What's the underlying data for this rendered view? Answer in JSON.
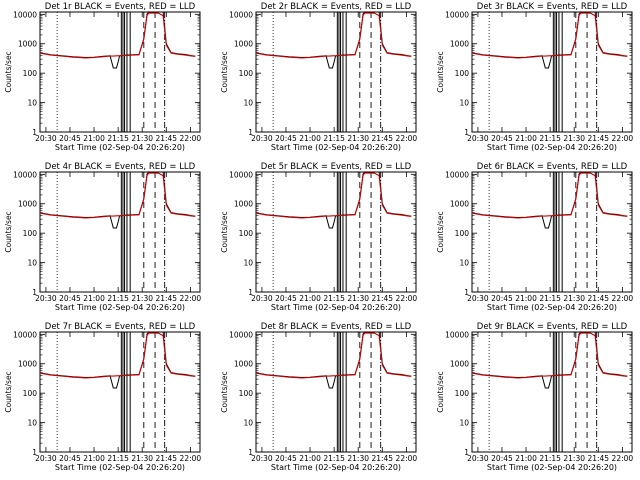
{
  "colors": {
    "events": "#000000",
    "lld": "#cc0000",
    "background": "#ffffff"
  },
  "chart_data": [
    {
      "type": "line",
      "title": "Det 1r BLACK = Events, RED = LLD",
      "xlabel": "Start Time (02-Sep-04 20:26:20)",
      "ylabel": "Counts/sec",
      "x_ticks": [
        "20:30",
        "20:45",
        "21:00",
        "21:15",
        "21:30",
        "21:45",
        "22:00"
      ],
      "y_ticks": [
        "1",
        "10",
        "100",
        "1000",
        "10000"
      ],
      "yscale": "log",
      "ylim": [
        1,
        12000
      ],
      "x": [
        "20:26",
        "20:33",
        "20:40",
        "20:47",
        "20:55",
        "21:00",
        "21:05",
        "21:10",
        "21:12",
        "21:14",
        "21:16",
        "21:18",
        "21:20",
        "21:24",
        "21:28",
        "21:31",
        "21:33",
        "21:34",
        "21:36",
        "21:40",
        "21:43",
        "21:45",
        "21:48",
        "21:52",
        "21:57",
        "22:00",
        "22:03"
      ],
      "series": [
        {
          "name": "Events",
          "values": [
            500,
            420,
            390,
            360,
            340,
            350,
            370,
            390,
            150,
            150,
            390,
            400,
            410,
            420,
            430,
            1500,
            10000,
            12000,
            12000,
            12000,
            12000,
            1000,
            500,
            460,
            430,
            400,
            380
          ]
        },
        {
          "name": "LLD",
          "values": [
            480,
            410,
            380,
            350,
            330,
            340,
            360,
            380,
            380,
            390,
            390,
            400,
            400,
            410,
            420,
            1400,
            9000,
            11000,
            11000,
            11000,
            9000,
            900,
            480,
            440,
            410,
            390,
            370
          ]
        }
      ]
    },
    {
      "type": "line",
      "title": "Det 2r BLACK = Events, RED = LLD",
      "xlabel": "Start Time (02-Sep-04 20:26:20)",
      "ylabel": "Counts/sec",
      "x_ticks": [
        "20:30",
        "20:45",
        "21:00",
        "21:15",
        "21:30",
        "21:45",
        "22:00"
      ],
      "y_ticks": [
        "1",
        "10",
        "100",
        "1000",
        "10000"
      ],
      "yscale": "log",
      "ylim": [
        1,
        12000
      ],
      "x": [
        "20:26",
        "20:33",
        "20:40",
        "20:47",
        "20:55",
        "21:00",
        "21:05",
        "21:10",
        "21:12",
        "21:14",
        "21:16",
        "21:18",
        "21:20",
        "21:24",
        "21:28",
        "21:31",
        "21:33",
        "21:34",
        "21:36",
        "21:40",
        "21:43",
        "21:45",
        "21:48",
        "21:52",
        "21:57",
        "22:00",
        "22:03"
      ],
      "series": [
        {
          "name": "Events",
          "values": [
            500,
            420,
            390,
            360,
            340,
            350,
            370,
            390,
            150,
            150,
            390,
            400,
            410,
            420,
            430,
            1500,
            10000,
            12000,
            12000,
            12000,
            12000,
            1000,
            500,
            460,
            430,
            400,
            380
          ]
        },
        {
          "name": "LLD",
          "values": [
            480,
            410,
            380,
            350,
            330,
            340,
            360,
            380,
            380,
            390,
            390,
            400,
            400,
            410,
            420,
            1400,
            9000,
            11000,
            11000,
            11000,
            9000,
            900,
            480,
            440,
            410,
            390,
            370
          ]
        }
      ]
    },
    {
      "type": "line",
      "title": "Det 3r BLACK = Events, RED = LLD",
      "xlabel": "Start Time (02-Sep-04 20:26:20)",
      "ylabel": "Counts/sec",
      "x_ticks": [
        "20:30",
        "20:45",
        "21:00",
        "21:15",
        "21:30",
        "21:45",
        "22:00"
      ],
      "y_ticks": [
        "1",
        "10",
        "100",
        "1000",
        "10000"
      ],
      "yscale": "log",
      "ylim": [
        1,
        12000
      ],
      "x": [
        "20:26",
        "20:33",
        "20:40",
        "20:47",
        "20:55",
        "21:00",
        "21:05",
        "21:10",
        "21:12",
        "21:14",
        "21:16",
        "21:18",
        "21:20",
        "21:24",
        "21:28",
        "21:31",
        "21:33",
        "21:34",
        "21:36",
        "21:40",
        "21:43",
        "21:45",
        "21:48",
        "21:52",
        "21:57",
        "22:00",
        "22:03"
      ],
      "series": [
        {
          "name": "Events",
          "values": [
            500,
            420,
            390,
            360,
            340,
            350,
            370,
            390,
            150,
            150,
            390,
            400,
            410,
            420,
            430,
            1500,
            10000,
            12000,
            12000,
            12000,
            12000,
            1000,
            500,
            460,
            430,
            400,
            380
          ]
        },
        {
          "name": "LLD",
          "values": [
            480,
            410,
            380,
            350,
            330,
            340,
            360,
            380,
            380,
            390,
            390,
            400,
            400,
            410,
            420,
            1400,
            9000,
            11000,
            11000,
            11000,
            9000,
            900,
            480,
            440,
            410,
            390,
            370
          ]
        }
      ]
    },
    {
      "type": "line",
      "title": "Det 4r BLACK = Events, RED = LLD",
      "xlabel": "Start Time (02-Sep-04 20:26:20)",
      "ylabel": "Counts/sec",
      "x_ticks": [
        "20:30",
        "20:45",
        "21:00",
        "21:15",
        "21:30",
        "21:45",
        "22:00"
      ],
      "y_ticks": [
        "1",
        "10",
        "100",
        "1000",
        "10000"
      ],
      "yscale": "log",
      "ylim": [
        1,
        12000
      ],
      "x": [
        "20:26",
        "20:33",
        "20:40",
        "20:47",
        "20:55",
        "21:00",
        "21:05",
        "21:10",
        "21:12",
        "21:14",
        "21:16",
        "21:18",
        "21:20",
        "21:24",
        "21:28",
        "21:31",
        "21:33",
        "21:34",
        "21:36",
        "21:40",
        "21:43",
        "21:45",
        "21:48",
        "21:52",
        "21:57",
        "22:00",
        "22:03"
      ],
      "series": [
        {
          "name": "Events",
          "values": [
            500,
            420,
            390,
            360,
            340,
            350,
            370,
            390,
            150,
            150,
            390,
            400,
            410,
            420,
            430,
            1500,
            10000,
            12000,
            12000,
            12000,
            12000,
            1000,
            500,
            460,
            430,
            400,
            380
          ]
        },
        {
          "name": "LLD",
          "values": [
            480,
            410,
            380,
            350,
            330,
            340,
            360,
            380,
            380,
            390,
            390,
            400,
            400,
            410,
            420,
            1400,
            9000,
            11000,
            11000,
            11000,
            9000,
            900,
            480,
            440,
            410,
            390,
            370
          ]
        }
      ]
    },
    {
      "type": "line",
      "title": "Det 5r BLACK = Events, RED = LLD",
      "xlabel": "Start Time (02-Sep-04 20:26:20)",
      "ylabel": "Counts/sec",
      "x_ticks": [
        "20:30",
        "20:45",
        "21:00",
        "21:15",
        "21:30",
        "21:45",
        "22:00"
      ],
      "y_ticks": [
        "1",
        "10",
        "100",
        "1000",
        "10000"
      ],
      "yscale": "log",
      "ylim": [
        1,
        12000
      ],
      "x": [
        "20:26",
        "20:33",
        "20:40",
        "20:47",
        "20:55",
        "21:00",
        "21:05",
        "21:10",
        "21:12",
        "21:14",
        "21:16",
        "21:18",
        "21:20",
        "21:24",
        "21:28",
        "21:31",
        "21:33",
        "21:34",
        "21:36",
        "21:40",
        "21:43",
        "21:45",
        "21:48",
        "21:52",
        "21:57",
        "22:00",
        "22:03"
      ],
      "series": [
        {
          "name": "Events",
          "values": [
            500,
            420,
            390,
            360,
            340,
            350,
            370,
            390,
            150,
            150,
            390,
            400,
            410,
            420,
            430,
            1500,
            10000,
            12000,
            12000,
            12000,
            12000,
            1000,
            500,
            460,
            430,
            400,
            380
          ]
        },
        {
          "name": "LLD",
          "values": [
            480,
            410,
            380,
            350,
            330,
            340,
            360,
            380,
            380,
            390,
            390,
            400,
            400,
            410,
            420,
            1400,
            9000,
            11000,
            11000,
            11000,
            9000,
            900,
            480,
            440,
            410,
            390,
            370
          ]
        }
      ]
    },
    {
      "type": "line",
      "title": "Det 6r BLACK = Events, RED = LLD",
      "xlabel": "Start Time (02-Sep-04 20:26:20)",
      "ylabel": "Counts/sec",
      "x_ticks": [
        "20:30",
        "20:45",
        "21:00",
        "21:15",
        "21:30",
        "21:45",
        "22:00"
      ],
      "y_ticks": [
        "1",
        "10",
        "100",
        "1000",
        "10000"
      ],
      "yscale": "log",
      "ylim": [
        1,
        12000
      ],
      "x": [
        "20:26",
        "20:33",
        "20:40",
        "20:47",
        "20:55",
        "21:00",
        "21:05",
        "21:10",
        "21:12",
        "21:14",
        "21:16",
        "21:18",
        "21:20",
        "21:24",
        "21:28",
        "21:31",
        "21:33",
        "21:34",
        "21:36",
        "21:40",
        "21:43",
        "21:45",
        "21:48",
        "21:52",
        "21:57",
        "22:00",
        "22:03"
      ],
      "series": [
        {
          "name": "Events",
          "values": [
            500,
            420,
            390,
            360,
            340,
            350,
            370,
            390,
            150,
            150,
            390,
            400,
            410,
            420,
            430,
            1500,
            10000,
            12000,
            12000,
            12000,
            12000,
            1000,
            500,
            460,
            430,
            400,
            380
          ]
        },
        {
          "name": "LLD",
          "values": [
            480,
            410,
            380,
            350,
            330,
            340,
            360,
            380,
            380,
            390,
            390,
            400,
            400,
            410,
            420,
            1400,
            9000,
            11000,
            11000,
            11000,
            9000,
            900,
            480,
            440,
            410,
            390,
            370
          ]
        }
      ]
    },
    {
      "type": "line",
      "title": "Det 7r BLACK = Events, RED = LLD",
      "xlabel": "Start Time (02-Sep-04 20:26:20)",
      "ylabel": "Counts/sec",
      "x_ticks": [
        "20:30",
        "20:45",
        "21:00",
        "21:15",
        "21:30",
        "21:45",
        "22:00"
      ],
      "y_ticks": [
        "1",
        "10",
        "100",
        "1000",
        "10000"
      ],
      "yscale": "log",
      "ylim": [
        1,
        12000
      ],
      "x": [
        "20:26",
        "20:33",
        "20:40",
        "20:47",
        "20:55",
        "21:00",
        "21:05",
        "21:10",
        "21:12",
        "21:14",
        "21:16",
        "21:18",
        "21:20",
        "21:24",
        "21:28",
        "21:31",
        "21:33",
        "21:34",
        "21:36",
        "21:40",
        "21:43",
        "21:45",
        "21:48",
        "21:52",
        "21:57",
        "22:00",
        "22:03"
      ],
      "series": [
        {
          "name": "Events",
          "values": [
            500,
            420,
            390,
            360,
            340,
            350,
            370,
            390,
            150,
            150,
            390,
            400,
            410,
            420,
            430,
            1500,
            10000,
            12000,
            12000,
            12000,
            12000,
            1000,
            500,
            460,
            430,
            400,
            380
          ]
        },
        {
          "name": "LLD",
          "values": [
            480,
            410,
            380,
            350,
            330,
            340,
            360,
            380,
            380,
            390,
            390,
            400,
            400,
            410,
            420,
            1400,
            9000,
            11000,
            11000,
            11000,
            9000,
            900,
            480,
            440,
            410,
            390,
            370
          ]
        }
      ]
    },
    {
      "type": "line",
      "title": "Det 8r BLACK = Events, RED = LLD",
      "xlabel": "Start Time (02-Sep-04 20:26:20)",
      "ylabel": "Counts/sec",
      "x_ticks": [
        "20:30",
        "20:45",
        "21:00",
        "21:15",
        "21:30",
        "21:45",
        "22:00"
      ],
      "y_ticks": [
        "1",
        "10",
        "100",
        "1000",
        "10000"
      ],
      "yscale": "log",
      "ylim": [
        1,
        12000
      ],
      "x": [
        "20:26",
        "20:33",
        "20:40",
        "20:47",
        "20:55",
        "21:00",
        "21:05",
        "21:10",
        "21:12",
        "21:14",
        "21:16",
        "21:18",
        "21:20",
        "21:24",
        "21:28",
        "21:31",
        "21:33",
        "21:34",
        "21:36",
        "21:40",
        "21:43",
        "21:45",
        "21:48",
        "21:52",
        "21:57",
        "22:00",
        "22:03"
      ],
      "series": [
        {
          "name": "Events",
          "values": [
            500,
            420,
            390,
            360,
            340,
            350,
            370,
            390,
            150,
            150,
            390,
            400,
            410,
            420,
            430,
            1500,
            10000,
            12000,
            12000,
            12000,
            12000,
            1000,
            500,
            460,
            430,
            400,
            380
          ]
        },
        {
          "name": "LLD",
          "values": [
            480,
            410,
            380,
            350,
            330,
            340,
            360,
            380,
            380,
            390,
            390,
            400,
            400,
            410,
            420,
            1400,
            9000,
            11000,
            11000,
            11000,
            9000,
            900,
            480,
            440,
            410,
            390,
            370
          ]
        }
      ]
    },
    {
      "type": "line",
      "title": "Det 9r BLACK = Events, RED = LLD",
      "xlabel": "Start Time (02-Sep-04 20:26:20)",
      "ylabel": "Counts/sec",
      "x_ticks": [
        "20:30",
        "20:45",
        "21:00",
        "21:15",
        "21:30",
        "21:45",
        "22:00"
      ],
      "y_ticks": [
        "1",
        "10",
        "100",
        "1000",
        "10000"
      ],
      "yscale": "log",
      "ylim": [
        1,
        12000
      ],
      "x": [
        "20:26",
        "20:33",
        "20:40",
        "20:47",
        "20:55",
        "21:00",
        "21:05",
        "21:10",
        "21:12",
        "21:14",
        "21:16",
        "21:18",
        "21:20",
        "21:24",
        "21:28",
        "21:31",
        "21:33",
        "21:34",
        "21:36",
        "21:40",
        "21:43",
        "21:45",
        "21:48",
        "21:52",
        "21:57",
        "22:00",
        "22:03"
      ],
      "series": [
        {
          "name": "Events",
          "values": [
            500,
            420,
            390,
            360,
            340,
            350,
            370,
            390,
            150,
            150,
            390,
            400,
            410,
            420,
            430,
            1500,
            10000,
            12000,
            12000,
            12000,
            12000,
            1000,
            500,
            460,
            430,
            400,
            380
          ]
        },
        {
          "name": "LLD",
          "values": [
            480,
            410,
            380,
            350,
            330,
            340,
            360,
            380,
            380,
            390,
            390,
            400,
            400,
            410,
            420,
            1400,
            9000,
            11000,
            11000,
            11000,
            9000,
            900,
            480,
            440,
            410,
            390,
            370
          ]
        }
      ]
    }
  ]
}
